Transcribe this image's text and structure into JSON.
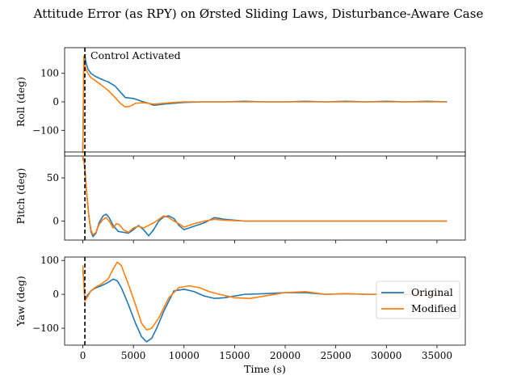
{
  "figure": {
    "title": "Attitude Error (as RPY) on Ørsted Sliding Laws, Disturbance-Aware Case"
  },
  "chart_data": [
    {
      "type": "line",
      "ylabel": "Roll (deg)",
      "xlabel": "",
      "xlim": [
        -1800,
        37800
      ],
      "ylim": [
        -190,
        190
      ],
      "yticks": [
        -100,
        0,
        100
      ],
      "xticks": [
        0,
        5000,
        10000,
        15000,
        20000,
        25000,
        30000,
        35000
      ],
      "show_xtick_labels": false,
      "grid": false,
      "vline": {
        "x": 200,
        "style": "dashed",
        "color": "#000000"
      },
      "annotation": "Control Activated",
      "series": [
        {
          "name": "Original",
          "color": "#1f77b4",
          "x": [
            0,
            100,
            200,
            300,
            500,
            800,
            1200,
            1800,
            2500,
            3200,
            3700,
            4200,
            5000,
            5800,
            6500,
            7000,
            7500,
            8000,
            9000,
            10000,
            12000,
            14000,
            16000,
            18000,
            20000,
            22000,
            24000,
            26000,
            28000,
            30000,
            32000,
            34000,
            36000
          ],
          "y": [
            -170,
            120,
            165,
            140,
            115,
            100,
            90,
            80,
            70,
            55,
            35,
            15,
            12,
            2,
            -5,
            -12,
            -10,
            -8,
            -5,
            -2,
            0,
            0,
            2,
            0,
            0,
            2,
            0,
            2,
            0,
            2,
            0,
            2,
            0
          ]
        },
        {
          "name": "Modified",
          "color": "#ff7f0e",
          "x": [
            0,
            100,
            200,
            300,
            500,
            800,
            1200,
            1800,
            2500,
            3200,
            3700,
            4200,
            4700,
            5200,
            6000,
            7000,
            8000,
            9000,
            10000,
            12000,
            14000,
            16000,
            18000,
            20000,
            22000,
            24000,
            26000,
            28000,
            30000,
            32000,
            34000,
            36000
          ],
          "y": [
            -180,
            160,
            130,
            115,
            100,
            85,
            75,
            60,
            40,
            15,
            -5,
            -18,
            -15,
            -5,
            -3,
            -8,
            -5,
            -2,
            0,
            0,
            0,
            0,
            0,
            0,
            0,
            0,
            0,
            0,
            0,
            0,
            0,
            0
          ]
        }
      ]
    },
    {
      "type": "line",
      "ylabel": "Pitch (deg)",
      "xlabel": "",
      "xlim": [
        -1800,
        37800
      ],
      "ylim": [
        -22,
        80
      ],
      "yticks": [
        0,
        50
      ],
      "xticks": [
        0,
        5000,
        10000,
        15000,
        20000,
        25000,
        30000,
        35000
      ],
      "show_xtick_labels": false,
      "grid": false,
      "vline": {
        "x": 200,
        "style": "dashed",
        "color": "#000000"
      },
      "annotation": "",
      "series": [
        {
          "name": "Original",
          "color": "#1f77b4",
          "x": [
            0,
            100,
            200,
            400,
            600,
            800,
            1000,
            1300,
            1600,
            2000,
            2300,
            2600,
            3000,
            3500,
            4000,
            4500,
            5000,
            5500,
            6000,
            6500,
            7000,
            7500,
            8000,
            8500,
            9000,
            9500,
            10000,
            11000,
            12000,
            13000,
            14000,
            16000,
            18000,
            20000,
            22000,
            24000,
            26000,
            28000,
            30000,
            32000,
            34000,
            36000
          ],
          "y": [
            70,
            72,
            60,
            30,
            5,
            -12,
            -18,
            -14,
            -2,
            6,
            8,
            4,
            -5,
            -12,
            -13,
            -14,
            -10,
            -5,
            -10,
            -17,
            -10,
            0,
            5,
            6,
            3,
            -5,
            -10,
            -6,
            -2,
            4,
            2,
            0,
            0,
            0,
            0,
            0,
            0,
            0,
            0,
            0,
            0,
            0
          ]
        },
        {
          "name": "Modified",
          "color": "#ff7f0e",
          "x": [
            0,
            100,
            200,
            400,
            600,
            800,
            1000,
            1300,
            1600,
            2000,
            2300,
            2600,
            3000,
            3300,
            3600,
            4000,
            4500,
            5000,
            5500,
            6000,
            6500,
            7000,
            7500,
            8000,
            8500,
            9000,
            9500,
            10000,
            11000,
            12000,
            13000,
            14000,
            16000,
            18000,
            20000,
            22000,
            24000,
            26000,
            28000,
            30000,
            32000,
            34000,
            36000
          ],
          "y": [
            75,
            70,
            58,
            30,
            5,
            -10,
            -16,
            -13,
            -4,
            2,
            4,
            0,
            -8,
            -3,
            -4,
            -10,
            -13,
            -8,
            -6,
            -8,
            -5,
            -2,
            2,
            6,
            4,
            0,
            -3,
            -7,
            -3,
            0,
            2,
            1,
            0,
            0,
            0,
            0,
            0,
            0,
            0,
            0,
            0,
            0,
            0
          ]
        }
      ]
    },
    {
      "type": "line",
      "ylabel": "Yaw (deg)",
      "xlabel": "Time (s)",
      "xlim": [
        -1800,
        37800
      ],
      "ylim": [
        -150,
        110
      ],
      "yticks": [
        -100,
        0,
        100
      ],
      "xticks": [
        0,
        5000,
        10000,
        15000,
        20000,
        25000,
        30000,
        35000
      ],
      "show_xtick_labels": true,
      "grid": false,
      "vline": {
        "x": 200,
        "style": "dashed",
        "color": "#000000"
      },
      "annotation": "",
      "legend_placement": "right",
      "series": [
        {
          "name": "Original",
          "color": "#1f77b4",
          "x": [
            0,
            100,
            200,
            400,
            800,
            1200,
            1800,
            2500,
            3000,
            3400,
            3800,
            4500,
            5200,
            5800,
            6300,
            6800,
            7300,
            8000,
            9000,
            10000,
            11000,
            12000,
            13000,
            14000,
            16000,
            18000,
            20000,
            22000,
            24000,
            26000,
            28000,
            30000,
            32000,
            34000,
            36000
          ],
          "y": [
            70,
            40,
            -15,
            -5,
            10,
            18,
            25,
            35,
            45,
            40,
            20,
            -30,
            -85,
            -125,
            -140,
            -130,
            -100,
            -50,
            10,
            15,
            8,
            -5,
            -12,
            -10,
            0,
            2,
            5,
            5,
            0,
            2,
            0,
            0,
            0,
            0,
            0
          ]
        },
        {
          "name": "Modified",
          "color": "#ff7f0e",
          "x": [
            0,
            100,
            200,
            400,
            800,
            1200,
            1800,
            2500,
            3000,
            3400,
            3800,
            4500,
            5200,
            5800,
            6300,
            6800,
            7500,
            8500,
            9500,
            10500,
            11500,
            12500,
            13500,
            15000,
            16500,
            18000,
            20000,
            22000,
            24000,
            26000,
            28000,
            30000,
            32000,
            34000,
            36000
          ],
          "y": [
            85,
            30,
            -20,
            -10,
            10,
            20,
            30,
            45,
            75,
            95,
            85,
            30,
            -30,
            -85,
            -105,
            -100,
            -70,
            -10,
            20,
            25,
            20,
            8,
            0,
            -10,
            -12,
            -5,
            5,
            8,
            0,
            2,
            0,
            0,
            0,
            0,
            0
          ]
        }
      ]
    }
  ]
}
